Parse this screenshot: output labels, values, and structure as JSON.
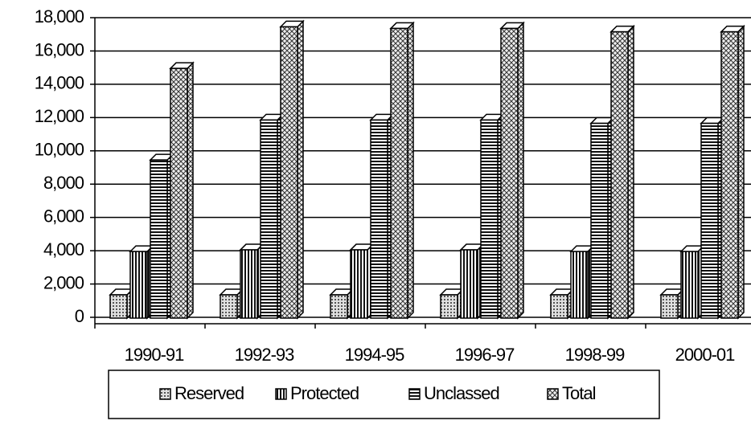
{
  "chart_data": {
    "type": "bar",
    "categories": [
      "1990-91",
      "1992-93",
      "1994-95",
      "1996-97",
      "1998-99",
      "2000-01"
    ],
    "series": [
      {
        "name": "Reserved",
        "color": "#d0d0d0",
        "values": [
          1400,
          1400,
          1400,
          1400,
          1400,
          1400
        ]
      },
      {
        "name": "Protected",
        "color": "#ffffff",
        "values": [
          4000,
          4100,
          4100,
          4100,
          4000,
          4000
        ]
      },
      {
        "name": "Unclassed",
        "color": "#ffffff",
        "values": [
          9500,
          11900,
          11900,
          11900,
          11700,
          11700
        ]
      },
      {
        "name": "Total",
        "color": "#e8e8e8",
        "values": [
          15000,
          17500,
          17400,
          17400,
          17200,
          17200
        ]
      }
    ],
    "ylim": [
      0,
      18000
    ],
    "yticks": [
      0,
      {
        "value": 2000,
        "label": "2,000"
      },
      {
        "value": 4000,
        "label": "4,000"
      },
      {
        "value": 6000,
        "label": "6,000"
      },
      {
        "value": 8000,
        "label": "8,000"
      },
      {
        "value": 10000,
        "label": "10,000"
      },
      {
        "value": 12000,
        "label": "12,000"
      },
      {
        "value": 14000,
        "label": "14,000"
      },
      {
        "value": 16000,
        "label": "16,000"
      },
      {
        "value": 18000,
        "label": "18,000"
      }
    ],
    "grid": true,
    "legend": "bottom"
  }
}
